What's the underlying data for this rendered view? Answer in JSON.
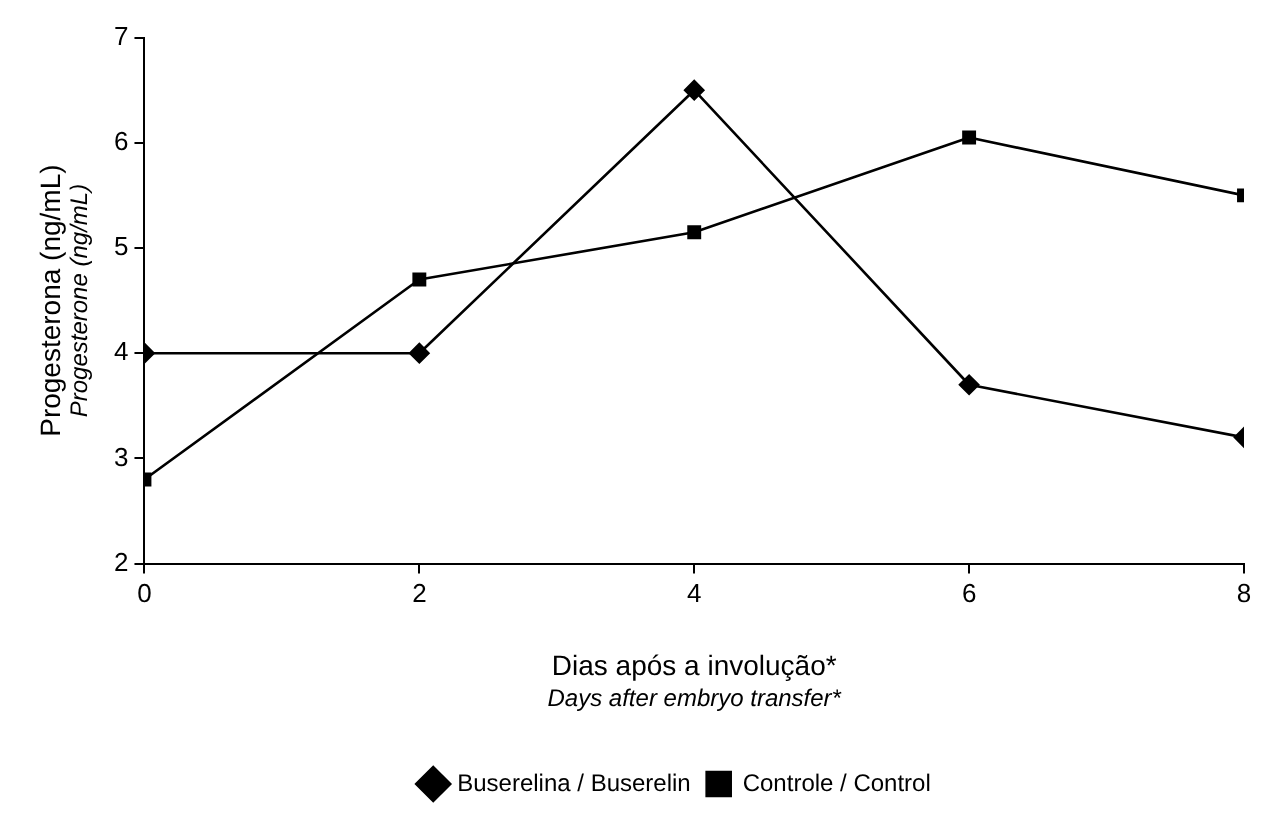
{
  "chart_data": {
    "type": "line",
    "xlabel": "Dias após a involução*\nDays after embryo transfer*",
    "ylabel": "Progesterona (ng/mL)\nProgesterone (ng/mL)",
    "x": [
      0,
      2,
      4,
      6,
      8
    ],
    "series": [
      {
        "name": "Buserelina / Buserelin",
        "color": "#000000",
        "marker": "diamond",
        "values": [
          4.0,
          4.0,
          6.5,
          3.7,
          3.2
        ]
      },
      {
        "name": "Controle / Control",
        "color": "#000000",
        "marker": "square",
        "values": [
          2.8,
          4.7,
          5.15,
          6.05,
          5.5
        ]
      }
    ],
    "xlim": [
      0,
      8
    ],
    "xticks": [
      0,
      2,
      4,
      6,
      8
    ],
    "ylim": [
      2,
      7
    ],
    "yticks": [
      2,
      3,
      4,
      5,
      6,
      7
    ],
    "grid": false,
    "legend": "bottom",
    "line_style": "solid"
  }
}
